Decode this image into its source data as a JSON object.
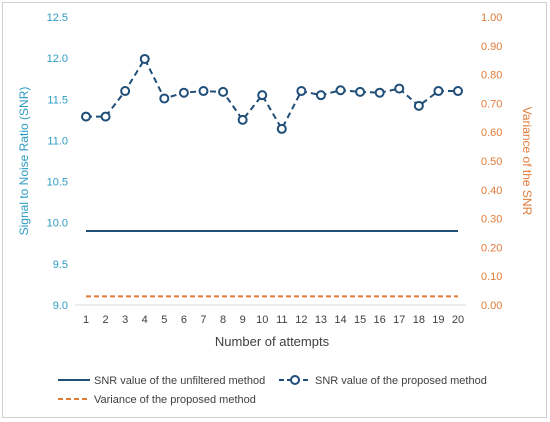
{
  "chart_data": {
    "type": "line",
    "x": [
      1,
      2,
      3,
      4,
      5,
      6,
      7,
      8,
      9,
      10,
      11,
      12,
      13,
      14,
      15,
      16,
      17,
      18,
      19,
      20
    ],
    "xlabel": "Number of attempts",
    "ylabel_left": "Signal to Noise Ratio (SNR)",
    "ylabel_right": "Variance of the SNR",
    "ylim_left": [
      9.0,
      12.5
    ],
    "ylim_right": [
      0.0,
      1.0
    ],
    "yticks_left": [
      "9.0",
      "9.5",
      "10.0",
      "10.5",
      "11.0",
      "11.5",
      "12.0",
      "12.5"
    ],
    "yticks_right": [
      "0.00",
      "0.10",
      "0.20",
      "0.30",
      "0.40",
      "0.50",
      "0.60",
      "0.70",
      "0.80",
      "0.90",
      "1.00"
    ],
    "series": [
      {
        "name": "SNR value of the unfiltered method",
        "axis": "left",
        "style": "solid",
        "color": "#1f4e79",
        "values": [
          9.9,
          9.9,
          9.9,
          9.9,
          9.9,
          9.9,
          9.9,
          9.9,
          9.9,
          9.9,
          9.9,
          9.9,
          9.9,
          9.9,
          9.9,
          9.9,
          9.9,
          9.9,
          9.9,
          9.9
        ]
      },
      {
        "name": "SNR value of the proposed method",
        "axis": "left",
        "style": "dashed-markers",
        "color": "#1f4e79",
        "values": [
          11.29,
          11.29,
          11.6,
          11.99,
          11.51,
          11.58,
          11.6,
          11.59,
          11.25,
          11.55,
          11.14,
          11.6,
          11.55,
          11.61,
          11.59,
          11.58,
          11.63,
          11.42,
          11.6,
          11.6
        ]
      },
      {
        "name": "Variance of the proposed method",
        "axis": "right",
        "style": "dashed",
        "color": "#e07b39",
        "values": [
          0.03,
          0.03,
          0.03,
          0.03,
          0.03,
          0.03,
          0.03,
          0.03,
          0.03,
          0.03,
          0.03,
          0.03,
          0.03,
          0.03,
          0.03,
          0.03,
          0.03,
          0.03,
          0.03,
          0.03
        ]
      }
    ],
    "grid": false,
    "legend_position": "bottom",
    "colors": {
      "left_axis": "#2e9bc4",
      "right_axis": "#e07b39",
      "text": "#404040"
    }
  }
}
